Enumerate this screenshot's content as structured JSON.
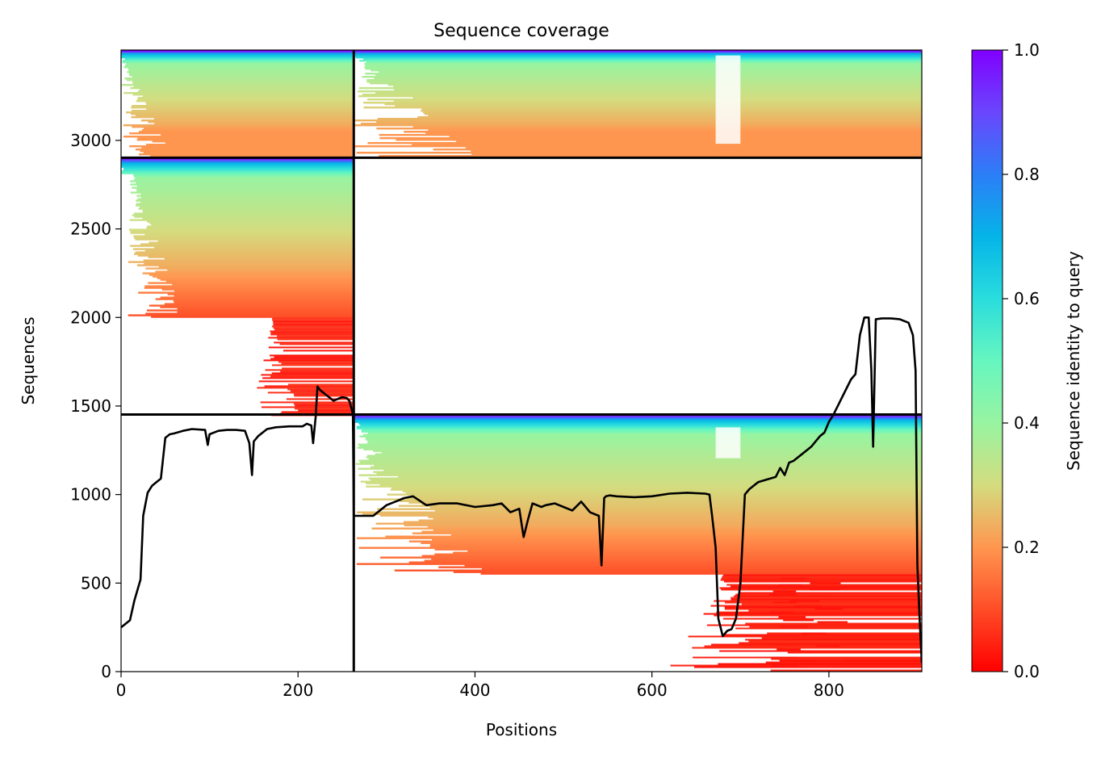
{
  "chart_data": {
    "type": "heatmap",
    "title": "Sequence coverage",
    "xlabel": "Positions",
    "ylabel": "Sequences",
    "xlim": [
      0,
      905
    ],
    "ylim": [
      0,
      3510
    ],
    "x_ticks": [
      0,
      200,
      400,
      600,
      800
    ],
    "y_ticks": [
      0,
      500,
      1000,
      1500,
      2000,
      2500,
      3000
    ],
    "colorbar": {
      "label": "Sequence identity to query",
      "range": [
        0.0,
        1.0
      ],
      "ticks": [
        "0.0",
        "0.2",
        "0.4",
        "0.6",
        "0.8",
        "1.0"
      ],
      "colormap": "rainbow_r"
    },
    "chain_boundaries": {
      "x": [
        263
      ],
      "y": [
        1452,
        2902
      ]
    },
    "blocks": [
      {
        "x_range": [
          0,
          263
        ],
        "y_range": [
          2902,
          3510
        ],
        "identity_top": 1.0,
        "identity_bottom": 0.2
      },
      {
        "x_range": [
          263,
          905
        ],
        "y_range": [
          2902,
          3510
        ],
        "identity_top": 1.0,
        "identity_bottom": 0.2
      },
      {
        "x_range": [
          0,
          263
        ],
        "y_range": [
          1452,
          2902
        ],
        "identity_top": 1.0,
        "identity_bottom": 0.0
      },
      {
        "x_range": [
          263,
          905
        ],
        "y_range": [
          0,
          1452
        ],
        "identity_top": 1.0,
        "identity_bottom": 0.0
      }
    ],
    "coverage_line": {
      "x": [
        0,
        10,
        15,
        22,
        25,
        30,
        35,
        40,
        45,
        50,
        55,
        60,
        70,
        80,
        95,
        98,
        100,
        105,
        110,
        120,
        130,
        140,
        145,
        148,
        150,
        155,
        165,
        175,
        190,
        205,
        210,
        215,
        217,
        220,
        222,
        225,
        230,
        235,
        240,
        245,
        250,
        255,
        258,
        262,
        263,
        270,
        285,
        300,
        310,
        320,
        330,
        345,
        360,
        380,
        400,
        420,
        430,
        440,
        450,
        455,
        460,
        465,
        475,
        480,
        490,
        500,
        510,
        520,
        530,
        535,
        540,
        543,
        546,
        548,
        552,
        560,
        580,
        600,
        620,
        640,
        660,
        665,
        668,
        672,
        675,
        680,
        685,
        690,
        695,
        700,
        705,
        710,
        720,
        740,
        745,
        750,
        755,
        760,
        770,
        780,
        790,
        795,
        800,
        805,
        810,
        815,
        820,
        825,
        830,
        835,
        840,
        845,
        848,
        850,
        853,
        860,
        870,
        880,
        890,
        895,
        898,
        900,
        903,
        905
      ],
      "y": [
        250,
        290,
        400,
        520,
        880,
        1010,
        1050,
        1070,
        1090,
        1320,
        1340,
        1345,
        1360,
        1370,
        1365,
        1280,
        1340,
        1350,
        1360,
        1365,
        1365,
        1360,
        1290,
        1110,
        1300,
        1330,
        1370,
        1380,
        1385,
        1385,
        1400,
        1390,
        1290,
        1440,
        1610,
        1590,
        1570,
        1550,
        1530,
        1540,
        1550,
        1545,
        1530,
        1455,
        880,
        880,
        880,
        940,
        960,
        980,
        990,
        940,
        950,
        950,
        930,
        940,
        950,
        900,
        920,
        760,
        860,
        950,
        930,
        940,
        950,
        930,
        910,
        960,
        900,
        890,
        880,
        600,
        980,
        990,
        995,
        990,
        985,
        990,
        1005,
        1010,
        1005,
        1000,
        880,
        700,
        300,
        200,
        230,
        240,
        300,
        500,
        1000,
        1030,
        1070,
        1100,
        1150,
        1110,
        1180,
        1190,
        1230,
        1270,
        1330,
        1350,
        1410,
        1450,
        1500,
        1550,
        1600,
        1650,
        1680,
        1900,
        2000,
        2000,
        1700,
        1270,
        1990,
        1995,
        1995,
        1990,
        1970,
        1900,
        1700,
        600,
        250,
        50
      ]
    }
  }
}
